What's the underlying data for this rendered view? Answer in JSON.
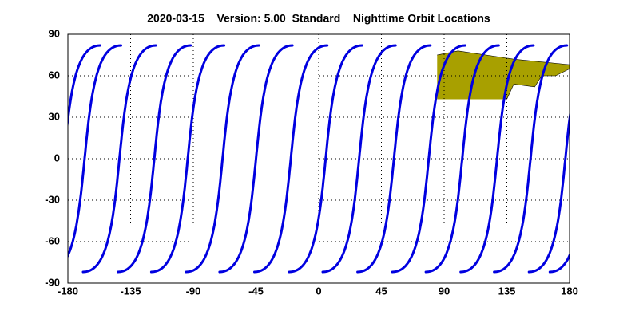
{
  "chart_data": {
    "type": "orbit-map",
    "title": "2020-03-15    Version: 5.00  Standard    Nighttime Orbit Locations",
    "xlim": [
      -180,
      180
    ],
    "ylim": [
      -90,
      90
    ],
    "xticks": [
      -180,
      -135,
      -90,
      -45,
      0,
      45,
      90,
      135,
      180
    ],
    "yticks": [
      -90,
      -60,
      -30,
      0,
      30,
      60,
      90
    ],
    "grid": true,
    "land_color": "#a8a000",
    "orbits": {
      "color": "#0000e0",
      "equator_crossings": [
        -168,
        -143,
        -118,
        -94,
        -69,
        -45,
        -20,
        5,
        29,
        54,
        79,
        103,
        128,
        152,
        177
      ]
    }
  }
}
